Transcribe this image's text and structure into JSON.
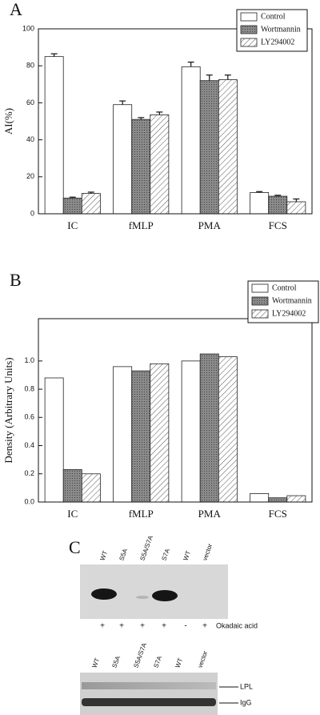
{
  "chart_data": [
    {
      "type": "bar",
      "panel": "A",
      "y_label": "AI(%)",
      "categories": [
        "IC",
        "fMLP",
        "PMA",
        "FCS"
      ],
      "series": [
        {
          "name": "Control",
          "color": "#ffffff",
          "values": [
            85,
            59,
            79.5,
            11.5
          ],
          "errors": [
            1.5,
            2,
            2.5,
            0.5
          ]
        },
        {
          "name": "Wortmannin",
          "color": "#7a7a7a",
          "values": [
            8.5,
            51,
            72,
            9.5
          ],
          "errors": [
            0.5,
            1,
            3,
            0.5
          ]
        },
        {
          "name": "LY294002",
          "color": "#ffffff",
          "pattern": "hatch",
          "values": [
            11,
            53.5,
            72.5,
            6.5
          ],
          "errors": [
            0.7,
            1.5,
            2.5,
            1.5
          ]
        }
      ],
      "ylim": [
        0,
        100
      ],
      "yticks": [
        0,
        20,
        40,
        60,
        80,
        100
      ],
      "legend": "top-right"
    },
    {
      "type": "bar",
      "panel": "B",
      "y_label": "Density (Arbitrary Units)",
      "categories": [
        "IC",
        "fMLP",
        "PMA",
        "FCS"
      ],
      "series": [
        {
          "name": "Control",
          "color": "#ffffff",
          "values": [
            0.88,
            0.96,
            1.0,
            0.06
          ]
        },
        {
          "name": "Wortmannin",
          "color": "#7a7a7a",
          "values": [
            0.23,
            0.93,
            1.05,
            0.03
          ]
        },
        {
          "name": "LY294002",
          "color": "#ffffff",
          "pattern": "hatch",
          "values": [
            0.2,
            0.98,
            1.03,
            0.045
          ]
        }
      ],
      "ylim": [
        0,
        1.3
      ],
      "yticks": [
        {
          "value": 0,
          "label": "0.0"
        },
        0.2,
        0.4,
        0.6,
        0.8,
        {
          "value": 1,
          "label": "1.0"
        }
      ],
      "legend": "top-right"
    }
  ],
  "blot": {
    "panel": "C",
    "lanes_top": [
      "WT",
      "S5A",
      "S5A/S7A",
      "S7A",
      "WT",
      "vector"
    ],
    "treatment_signs": [
      "+",
      "+",
      "+",
      "+",
      "-",
      "+"
    ],
    "treatment": "Okadaic acid",
    "lanes_bottom": [
      "WT",
      "S5A",
      "S5A/S7A",
      "S7A",
      "WT",
      "vector"
    ],
    "bands": [
      "LPL",
      "IgG"
    ]
  }
}
